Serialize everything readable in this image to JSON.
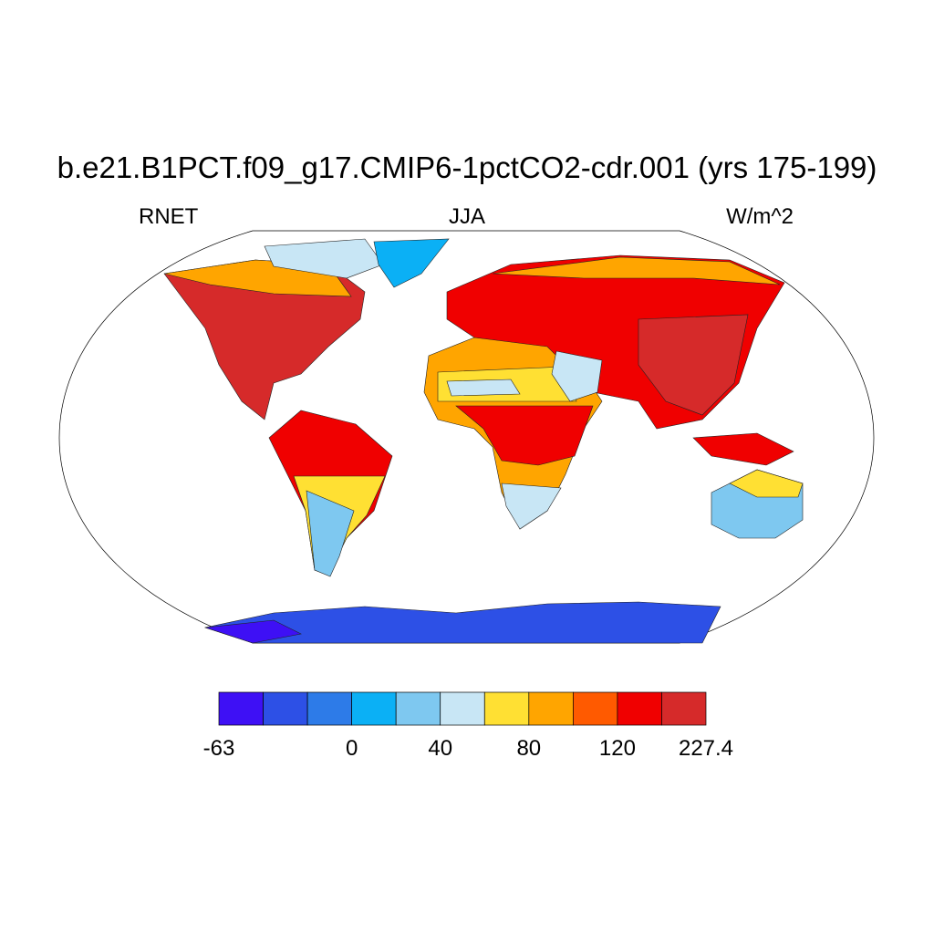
{
  "header": {
    "title": "b.e21.B1PCT.f09_g17.CMIP6-1pctCO2-cdr.001 (yrs 175-199)",
    "left": "RNET",
    "center": "JJA",
    "right": "W/m^2"
  },
  "colorbar": {
    "colors": [
      "#3e10f5",
      "#2d50e6",
      "#2d7be8",
      "#0bb0f5",
      "#7ec8f0",
      "#c8e6f5",
      "#ffe033",
      "#ffa500",
      "#ff5a00",
      "#f00000",
      "#d62a2a"
    ],
    "labels": [
      -63,
      0,
      40,
      80,
      120,
      227.4
    ]
  }
}
